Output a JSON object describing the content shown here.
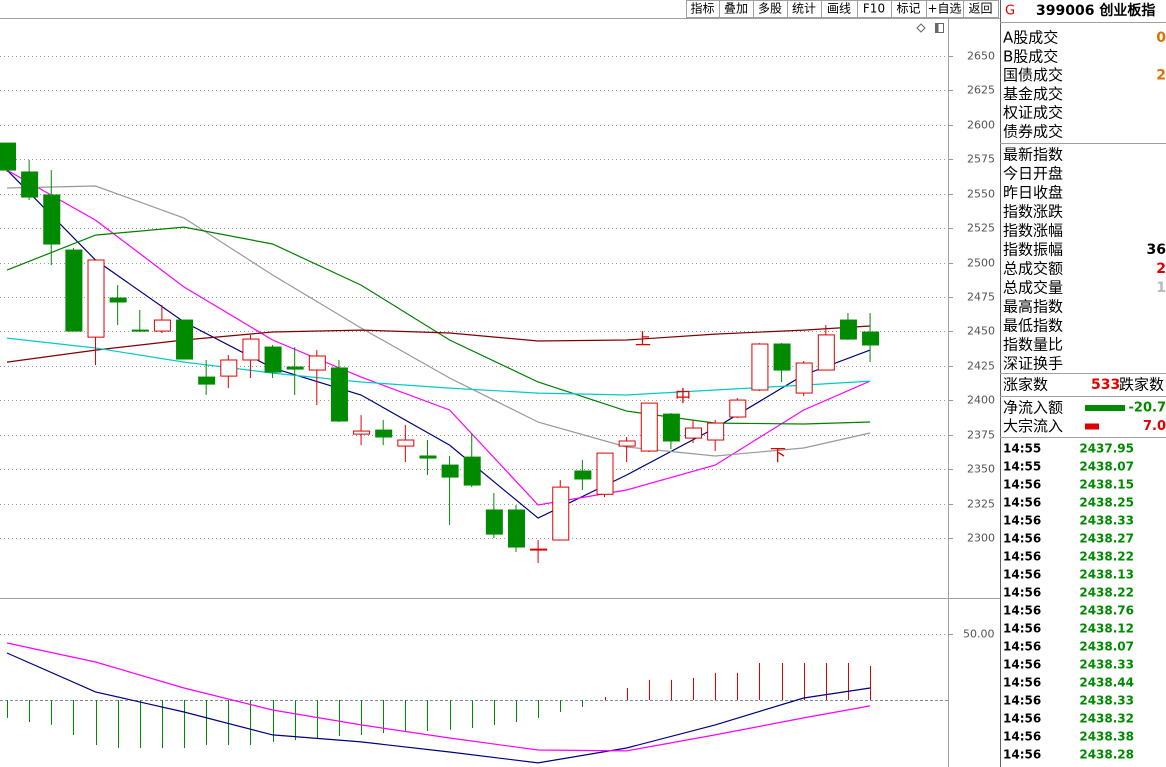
{
  "toolbar": [
    "指标",
    "叠加",
    "多股",
    "统计",
    "画线",
    "F10",
    "标记",
    "+自选",
    "返回"
  ],
  "chart_data": [
    {
      "type": "candlestick",
      "open": [
        2586.8,
        2565.8,
        2549.1,
        2509.1,
        2445.9,
        2474.3,
        2451.0,
        2450.3,
        2458.3,
        2416.9,
        2417.6,
        2429.3,
        2438.7,
        2424.2,
        2422.0,
        2423.5,
        2375.5,
        2378.4,
        2366.8,
        2359.6,
        2353.0,
        2358.8,
        2320.4,
        2320.4,
        2291.3,
        2298.6,
        2348.7,
        2331.8,
        2366.8,
        2363.2,
        2390.0,
        2372.6,
        2371.2,
        2387.9,
        2407.5,
        2440.9,
        2405.3,
        2422.0,
        2458.3,
        2449.6
      ],
      "close": [
        2567.2,
        2547.6,
        2513.5,
        2450.3,
        2501.9,
        2471.4,
        2450.3,
        2458.3,
        2430.0,
        2411.8,
        2429.3,
        2444.5,
        2420.5,
        2422.7,
        2432.2,
        2385.0,
        2377.7,
        2373.4,
        2371.2,
        2358.1,
        2344.3,
        2338.5,
        2302.9,
        2293.5,
        2292.0,
        2337.0,
        2342.9,
        2361.7,
        2370.5,
        2398.0,
        2370.5,
        2379.9,
        2383.5,
        2400.2,
        2440.9,
        2422.0,
        2427.1,
        2447.5,
        2444.5,
        2440.2
      ],
      "high": [
        2586.8,
        2574.5,
        2567.2,
        2510.6,
        2501.9,
        2483.7,
        2465.6,
        2469.2,
        2458.3,
        2429.3,
        2432.9,
        2447.5,
        2440.2,
        2438.7,
        2436.5,
        2429.3,
        2389.3,
        2385.7,
        2382.1,
        2371.2,
        2359.6,
        2376.3,
        2332.7,
        2324.0,
        2298.6,
        2342.1,
        2356.7,
        2361.7,
        2373.4,
        2398.0,
        2390.8,
        2385.7,
        2385.7,
        2401.7,
        2441.6,
        2441.6,
        2428.6,
        2454.7,
        2463.4,
        2463.4
      ],
      "low": [
        2565.8,
        2545.4,
        2498.2,
        2450.3,
        2425.6,
        2454.7,
        2449.6,
        2448.9,
        2430.0,
        2403.9,
        2408.9,
        2416.2,
        2416.2,
        2403.9,
        2396.6,
        2384.3,
        2367.5,
        2367.5,
        2355.2,
        2345.8,
        2309.5,
        2337.0,
        2300.0,
        2289.9,
        2281.9,
        2298.6,
        2334.9,
        2329.8,
        2355.2,
        2362.5,
        2364.6,
        2369.0,
        2363.2,
        2387.2,
        2406.8,
        2413.3,
        2403.1,
        2422.0,
        2443.8,
        2427.8
      ],
      "up_color": "#e00000",
      "down_color": "#008a00",
      "ylim": [
        2256.5,
        2677.6
      ],
      "yticks": [
        2300,
        2325,
        2350,
        2375,
        2400,
        2425,
        2450,
        2475,
        2500,
        2525,
        2550,
        2575,
        2600,
        2625,
        2650
      ],
      "grid": true,
      "line_x": [
        0,
        4,
        8,
        12,
        16,
        20,
        24,
        28,
        32,
        36,
        39
      ],
      "lines": [
        {
          "color": "#000080",
          "values": [
            2567.2,
            2501.9,
            2456.9,
            2423.5,
            2403.9,
            2367.5,
            2314.5,
            2345.8,
            2379.9,
            2418.4,
            2436.5
          ]
        },
        {
          "color": "#ff00ff",
          "values": [
            2567.2,
            2530.9,
            2482.3,
            2443.8,
            2416.9,
            2393.0,
            2324.0,
            2334.9,
            2353.0,
            2393.0,
            2414.0
          ]
        },
        {
          "color": "#999999",
          "values": [
            2554.2,
            2555.6,
            2532.4,
            2491.0,
            2452.5,
            2416.2,
            2384.2,
            2366.1,
            2359.6,
            2365.4,
            2376.3
          ]
        },
        {
          "color": "#008000",
          "values": [
            2494.6,
            2520.0,
            2525.8,
            2513.5,
            2483.7,
            2443.8,
            2413.3,
            2392.2,
            2383.5,
            2382.8,
            2384.3
          ]
        },
        {
          "color": "#800000",
          "values": [
            2427.8,
            2436.5,
            2443.8,
            2449.6,
            2451.0,
            2448.9,
            2443.1,
            2443.8,
            2448.1,
            2451.0,
            2454.0
          ]
        },
        {
          "color": "#00cccc",
          "values": [
            2445.2,
            2438.0,
            2427.8,
            2419.8,
            2413.3,
            2408.9,
            2405.3,
            2403.9,
            2407.5,
            2411.1,
            2414.0
          ]
        }
      ],
      "annotations": [
        "上",
        "中",
        "下"
      ],
      "annotation_color": "#e00000"
    },
    {
      "type": "bar",
      "values": [
        -13.6,
        -16.7,
        -18.9,
        -26.5,
        -34.1,
        -36.4,
        -36.4,
        -36.4,
        -36.4,
        -34.1,
        -34.1,
        -34.1,
        -31.8,
        -30.3,
        -28.8,
        -27.3,
        -26.5,
        -25.0,
        -24.2,
        -23.5,
        -22.7,
        -21.2,
        -18.9,
        -16.7,
        -13.6,
        -9.1,
        -5.3,
        2.3,
        9.1,
        15.2,
        15.2,
        16.7,
        20.5,
        20.5,
        28.0,
        28.0,
        28.0,
        28.0,
        28.0,
        25.8
      ],
      "up_color": "#e00000",
      "down_color": "#008a00",
      "ylim": [
        -50.8,
        77.3
      ],
      "yticks": [
        {
          "value": 50,
          "label": "50.00"
        }
      ],
      "grid": true,
      "line_x": [
        0,
        4,
        8,
        12,
        16,
        20,
        24,
        28,
        32,
        36,
        39
      ],
      "lines": [
        {
          "color": "#000080",
          "values": [
            35.6,
            6.1,
            -9.1,
            -26.5,
            -31.8,
            -39.4,
            -47.7,
            -36.4,
            -18.9,
            1.5,
            9.1
          ]
        },
        {
          "color": "#ff00ff",
          "values": [
            43.2,
            28.8,
            9.1,
            -7.6,
            -18.9,
            -28.8,
            -37.9,
            -38.6,
            -26.5,
            -13.6,
            -4.5
          ]
        }
      ]
    }
  ],
  "panel": {
    "badge": "G",
    "title": "399006 创业板指",
    "volume_rows": [
      {
        "label": "A股成交",
        "value": "0",
        "color": "#e07000"
      },
      {
        "label": "B股成交"
      },
      {
        "label": "国债成交",
        "value": "2",
        "color": "#e07000"
      },
      {
        "label": "基金成交"
      },
      {
        "label": "权证成交"
      },
      {
        "label": "债券成交"
      }
    ],
    "index_rows": [
      {
        "label": "最新指数"
      },
      {
        "label": "今日开盘"
      },
      {
        "label": "昨日收盘"
      },
      {
        "label": "指数涨跌"
      },
      {
        "label": "指数涨幅"
      },
      {
        "label": "指数振幅",
        "value": "36",
        "color": "#000000"
      },
      {
        "label": "总成交额",
        "value": "2",
        "color": "#e00000"
      },
      {
        "label": "总成交量",
        "value": "1",
        "color": "#bbbbbb"
      },
      {
        "label": "最高指数"
      },
      {
        "label": "最低指数"
      },
      {
        "label": "指数量比"
      },
      {
        "label": "深证换手"
      }
    ],
    "breadth": {
      "up_label": "涨家数",
      "up_count": "533",
      "down_label": "跌家数"
    },
    "flows": [
      {
        "label": "净流入额",
        "value": "-20.7",
        "color": "#008a00"
      },
      {
        "label": "大宗流入",
        "value": "7.0",
        "color": "#e00000"
      }
    ],
    "ticks": [
      {
        "time": "14:55",
        "price": "2437.95"
      },
      {
        "time": "14:55",
        "price": "2438.07"
      },
      {
        "time": "14:56",
        "price": "2438.15"
      },
      {
        "time": "14:56",
        "price": "2438.25"
      },
      {
        "time": "14:56",
        "price": "2438.33"
      },
      {
        "time": "14:56",
        "price": "2438.27"
      },
      {
        "time": "14:56",
        "price": "2438.22"
      },
      {
        "time": "14:56",
        "price": "2438.13"
      },
      {
        "time": "14:56",
        "price": "2438.22"
      },
      {
        "time": "14:56",
        "price": "2438.76"
      },
      {
        "time": "14:56",
        "price": "2438.12"
      },
      {
        "time": "14:56",
        "price": "2438.07"
      },
      {
        "time": "14:56",
        "price": "2438.33"
      },
      {
        "time": "14:56",
        "price": "2438.44"
      },
      {
        "time": "14:56",
        "price": "2438.33"
      },
      {
        "time": "14:56",
        "price": "2438.32"
      },
      {
        "time": "14:56",
        "price": "2438.38"
      },
      {
        "time": "14:56",
        "price": "2438.28"
      }
    ]
  }
}
